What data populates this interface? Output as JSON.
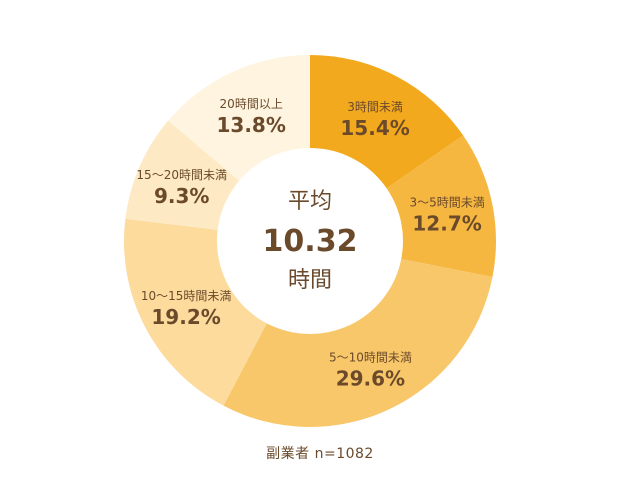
{
  "chart_data": {
    "type": "pie",
    "style": "donut",
    "center": {
      "label_top": "平均",
      "value": "10.32",
      "label_bottom": "時間"
    },
    "slices": [
      {
        "label": "3時間未満",
        "value": 15.4,
        "display": "15.4%",
        "color": "#f3a91d"
      },
      {
        "label": "3～5時間未満",
        "value": 12.7,
        "display": "12.7%",
        "color": "#f5b740"
      },
      {
        "label": "5～10時間未満",
        "value": 29.6,
        "display": "29.6%",
        "color": "#f8c76a"
      },
      {
        "label": "10～15時間未満",
        "value": 19.2,
        "display": "19.2%",
        "color": "#fcdb9d"
      },
      {
        "label": "15～20時間未満",
        "value": 9.3,
        "display": "9.3%",
        "color": "#fde9c4"
      },
      {
        "label": "20時間以上",
        "value": 13.8,
        "display": "13.8%",
        "color": "#fef4e0"
      }
    ],
    "text_color": "#6b4a2b"
  },
  "footer": {
    "note": "副業者 n=1082"
  }
}
